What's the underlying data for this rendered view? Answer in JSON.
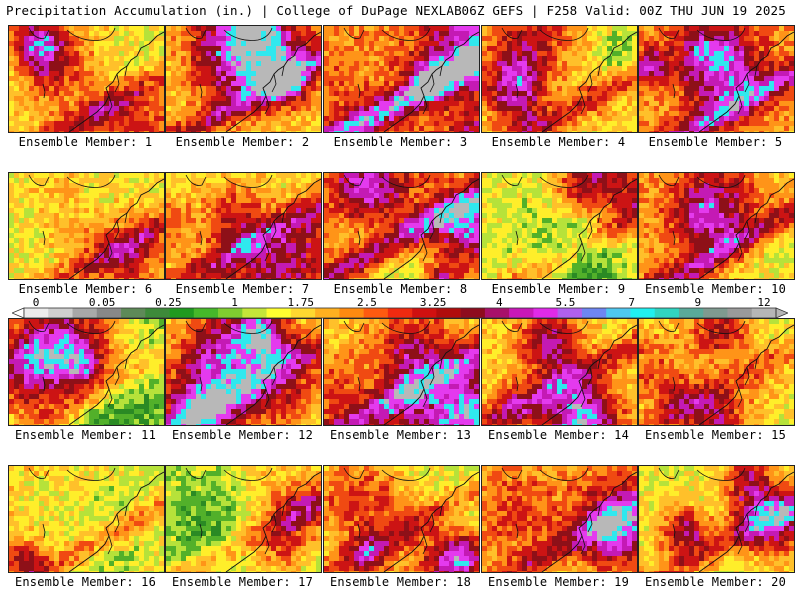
{
  "header": {
    "left": "Precipitation Accumulation (in.) | College of DuPage NEXLAB",
    "right": "06Z GEFS | F258 Valid: 00Z THU JUN 19 2025"
  },
  "members": [
    {
      "label": "Ensemble Member: 1",
      "intensity": 0.55
    },
    {
      "label": "Ensemble Member: 2",
      "intensity": 0.6
    },
    {
      "label": "Ensemble Member: 3",
      "intensity": 0.85
    },
    {
      "label": "Ensemble Member: 4",
      "intensity": 0.6
    },
    {
      "label": "Ensemble Member: 5",
      "intensity": 0.7
    },
    {
      "label": "Ensemble Member: 6",
      "intensity": 0.5
    },
    {
      "label": "Ensemble Member: 7",
      "intensity": 0.55
    },
    {
      "label": "Ensemble Member: 8",
      "intensity": 0.75
    },
    {
      "label": "Ensemble Member: 9",
      "intensity": 0.45
    },
    {
      "label": "Ensemble Member: 10",
      "intensity": 0.7
    },
    {
      "label": "Ensemble Member: 11",
      "intensity": 0.3
    },
    {
      "label": "Ensemble Member: 12",
      "intensity": 0.45
    },
    {
      "label": "Ensemble Member: 13",
      "intensity": 0.65
    },
    {
      "label": "Ensemble Member: 14",
      "intensity": 0.55
    },
    {
      "label": "Ensemble Member: 15",
      "intensity": 0.4
    },
    {
      "label": "Ensemble Member: 16",
      "intensity": 0.5
    },
    {
      "label": "Ensemble Member: 17",
      "intensity": 0.4
    },
    {
      "label": "Ensemble Member: 18",
      "intensity": 0.45
    },
    {
      "label": "Ensemble Member: 19",
      "intensity": 0.5
    },
    {
      "label": "Ensemble Member: 20",
      "intensity": 0.5
    }
  ],
  "legend": {
    "labels": [
      "0",
      "0.05",
      "0.25",
      "1",
      "1.75",
      "2.5",
      "3.25",
      "4",
      "5.5",
      "7",
      "9",
      "12"
    ],
    "colors": [
      "#ececec",
      "#cfcfcf",
      "#a8a8a8",
      "#888888",
      "#5e8a58",
      "#3d8a3a",
      "#1f9a1f",
      "#46b82a",
      "#7fcd30",
      "#c4e63a",
      "#ffff30",
      "#ffd830",
      "#ffb020",
      "#ff8a10",
      "#ff5a10",
      "#f02a10",
      "#d01010",
      "#b00c0c",
      "#8e0c1e",
      "#a8106a",
      "#c818b8",
      "#e02ae8",
      "#b060ee",
      "#6e86f2",
      "#4fc8f0",
      "#20f0f0",
      "#30d4c0",
      "#5aaa9a",
      "#7f9a90",
      "#9a9a9a",
      "#b6b6b6"
    ]
  },
  "palette": {
    "green_dark": "#2a8a24",
    "green": "#52b02a",
    "yellow_green": "#b6e23a",
    "yellow": "#ffee2a",
    "orange_light": "#ffc02a",
    "orange": "#ff9418",
    "red_orange": "#f04a12",
    "red": "#cc1414",
    "dark_red": "#8e1018",
    "magenta": "#c41ab4",
    "violet": "#e43aee",
    "cyan": "#30e8ee",
    "gray": "#b8b8b8"
  }
}
